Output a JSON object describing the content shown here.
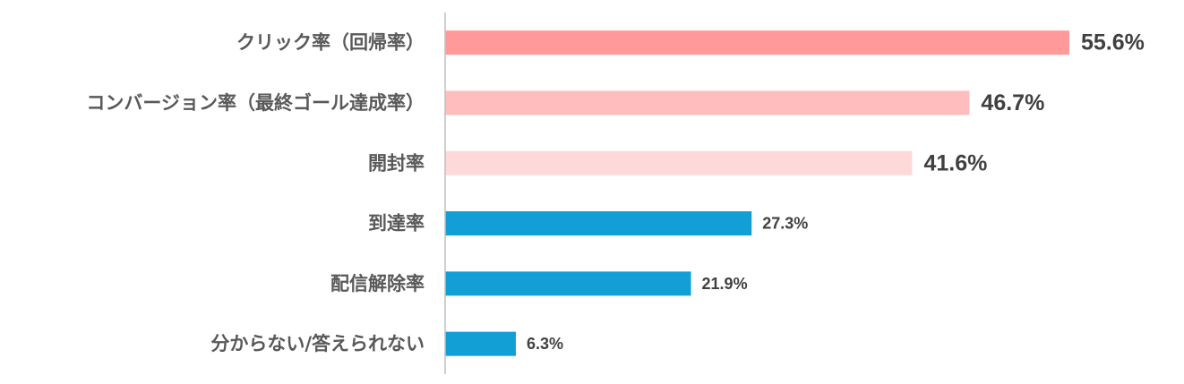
{
  "chart_data": {
    "type": "bar",
    "orientation": "horizontal",
    "title": "",
    "xlabel": "",
    "ylabel": "",
    "categories": [
      "クリック率（回帰率）",
      "コンバージョン率（最終ゴール達成率）",
      "開封率",
      "到達率",
      "配信解除率",
      "分からない/答えられない"
    ],
    "values": [
      55.6,
      46.7,
      41.6,
      27.3,
      21.9,
      6.3
    ],
    "value_labels": [
      "55.6%",
      "46.7%",
      "41.6%",
      "27.3%",
      "21.9%",
      "6.3%"
    ],
    "bar_colors": [
      "#FF999A",
      "#FFBDBE",
      "#FFD9DA",
      "#119FD6",
      "#119FD6",
      "#119FD6"
    ],
    "xlim": [
      0,
      55.6
    ],
    "grid": false,
    "legend": "none"
  }
}
